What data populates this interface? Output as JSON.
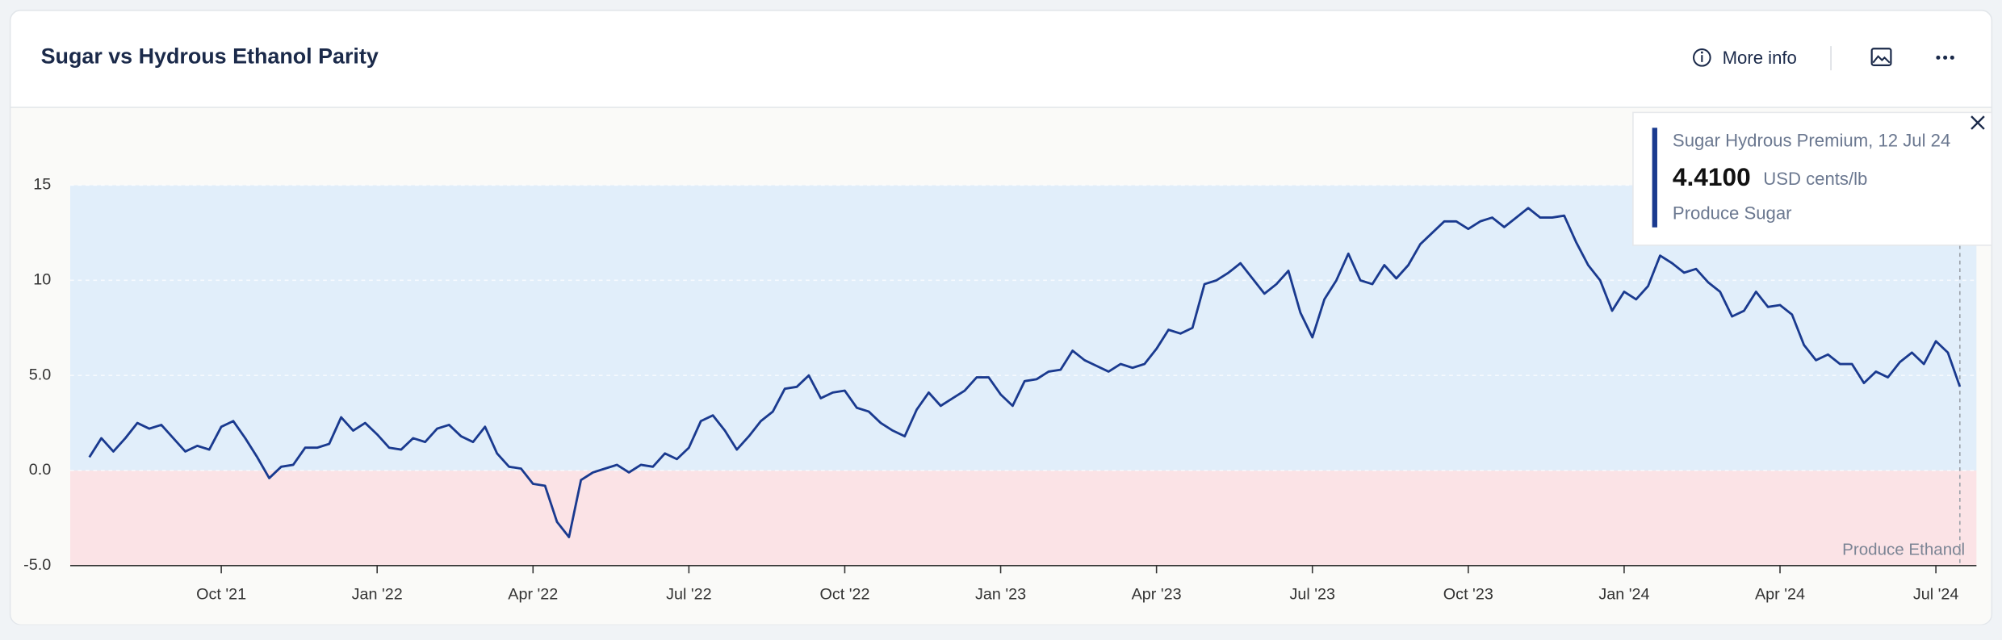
{
  "header": {
    "title": "Sugar vs Hydrous Ethanol Parity",
    "more_info": "More info"
  },
  "chart_data": {
    "type": "line",
    "categories": [
      null,
      null,
      null,
      null,
      null,
      null,
      null,
      null,
      null,
      null,
      null,
      "Oct '21",
      null,
      null,
      null,
      null,
      null,
      null,
      null,
      null,
      null,
      null,
      null,
      null,
      "Jan '22",
      null,
      null,
      null,
      null,
      null,
      null,
      null,
      null,
      null,
      null,
      null,
      null,
      "Apr '22",
      null,
      null,
      null,
      null,
      null,
      null,
      null,
      null,
      null,
      null,
      null,
      null,
      "Jul '22",
      null,
      null,
      null,
      null,
      null,
      null,
      null,
      null,
      null,
      null,
      null,
      null,
      "Oct '22",
      null,
      null,
      null,
      null,
      null,
      null,
      null,
      null,
      null,
      null,
      null,
      null,
      "Jan '23",
      null,
      null,
      null,
      null,
      null,
      null,
      null,
      null,
      null,
      null,
      null,
      null,
      "Apr '23",
      null,
      null,
      null,
      null,
      null,
      null,
      null,
      null,
      null,
      null,
      null,
      null,
      "Jul '23",
      null,
      null,
      null,
      null,
      null,
      null,
      null,
      null,
      null,
      null,
      null,
      null,
      "Oct '23",
      null,
      null,
      null,
      null,
      null,
      null,
      null,
      null,
      null,
      null,
      null,
      null,
      "Jan '24",
      null,
      null,
      null,
      null,
      null,
      null,
      null,
      null,
      null,
      null,
      null,
      null,
      "Apr '24",
      null,
      null,
      null,
      null,
      null,
      null,
      null,
      null,
      null,
      null,
      null,
      null,
      "Jul '24",
      null,
      null
    ],
    "values": [
      0.7,
      1.7,
      1.0,
      1.7,
      2.5,
      2.2,
      2.4,
      1.7,
      1.0,
      1.3,
      1.1,
      2.3,
      2.6,
      1.7,
      0.7,
      -0.4,
      0.2,
      0.3,
      1.2,
      1.2,
      1.4,
      2.8,
      2.1,
      2.5,
      1.9,
      1.2,
      1.1,
      1.7,
      1.5,
      2.2,
      2.4,
      1.8,
      1.5,
      2.3,
      0.9,
      0.2,
      0.1,
      -0.7,
      -0.8,
      -2.7,
      -3.5,
      -0.5,
      -0.1,
      0.1,
      0.3,
      -0.1,
      0.3,
      0.2,
      0.9,
      0.6,
      1.2,
      2.6,
      2.9,
      2.1,
      1.1,
      1.8,
      2.6,
      3.1,
      4.3,
      4.4,
      5.0,
      3.8,
      4.1,
      4.2,
      3.3,
      3.1,
      2.5,
      2.1,
      1.8,
      3.2,
      4.1,
      3.4,
      3.8,
      4.2,
      4.9,
      4.9,
      4.0,
      3.4,
      4.7,
      4.8,
      5.2,
      5.3,
      6.3,
      5.8,
      5.5,
      5.2,
      5.6,
      5.4,
      5.6,
      6.4,
      7.4,
      7.2,
      7.5,
      9.8,
      10.0,
      10.4,
      10.9,
      10.1,
      9.3,
      9.8,
      10.5,
      8.3,
      7.0,
      9.0,
      10.0,
      11.4,
      10.0,
      9.8,
      10.8,
      10.1,
      10.8,
      11.9,
      12.5,
      13.1,
      13.1,
      12.7,
      13.1,
      13.3,
      12.8,
      13.3,
      13.8,
      13.3,
      13.3,
      13.4,
      12.0,
      10.8,
      10.0,
      8.4,
      9.4,
      9.0,
      9.7,
      11.3,
      10.9,
      10.4,
      10.6,
      9.9,
      9.4,
      8.1,
      8.4,
      9.4,
      8.6,
      8.7,
      8.2,
      6.6,
      5.8,
      6.1,
      5.6,
      5.6,
      4.6,
      5.2,
      4.9,
      5.7,
      6.2,
      5.6,
      6.8,
      6.2,
      4.41
    ],
    "color": "#1a3a8f",
    "ylim": [
      -5,
      15
    ],
    "yticks": [
      {
        "value": -5,
        "label": "-5.0"
      },
      {
        "value": 0,
        "label": "0.0"
      },
      {
        "value": 5,
        "label": "5.0"
      },
      10,
      15
    ],
    "grid": true,
    "regions": [
      {
        "name": "Produce Sugar",
        "from": 0,
        "to": 15,
        "color": "#e1eefa"
      },
      {
        "name": "Produce Ethanol",
        "from": -5,
        "to": 0,
        "color": "#fbe3e6"
      }
    ],
    "tooltip": {
      "title": "Sugar Hydrous Premium, 12 Jul 24",
      "value_label": "4.4100",
      "unit": "USD cents/lb"
    }
  }
}
